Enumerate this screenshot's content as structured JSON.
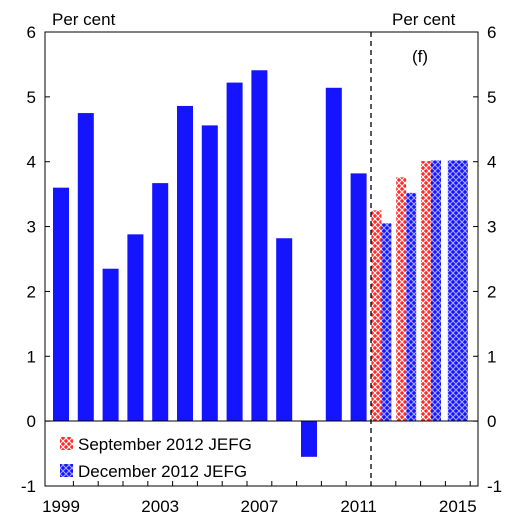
{
  "chart_data": {
    "type": "bar",
    "ylim": [
      -1,
      6
    ],
    "yticks": [
      -1,
      0,
      1,
      2,
      3,
      4,
      5,
      6
    ],
    "ytick_labels": [
      "-1",
      "0",
      "1",
      "2",
      "3",
      "4",
      "5",
      "6"
    ],
    "xtick_labels": [
      "1999",
      "2003",
      "2007",
      "2011",
      "2015"
    ],
    "xtick_years": [
      1999,
      2003,
      2007,
      2011,
      2015
    ],
    "unit_left": "Per cent",
    "unit_right": "Per cent",
    "forecast_label": "(f)",
    "forecast_after_year": 2011,
    "grid": false,
    "legend_position": "bottom-left",
    "history": {
      "years": [
        1999,
        2000,
        2001,
        2002,
        2003,
        2004,
        2005,
        2006,
        2007,
        2008,
        2009,
        2010,
        2011
      ],
      "values": [
        3.6,
        4.75,
        2.35,
        2.88,
        3.67,
        4.86,
        4.56,
        5.22,
        5.41,
        2.82,
        -0.55,
        5.14,
        3.82
      ]
    },
    "series": [
      {
        "name": "September 2012 JEFG",
        "years": [
          2012,
          2013,
          2014
        ],
        "values": [
          3.25,
          3.76,
          4.01
        ],
        "color": "#ff2020"
      },
      {
        "name": "December 2012 JEFG",
        "years": [
          2012,
          2013,
          2014,
          2015
        ],
        "values": [
          3.05,
          3.52,
          4.02,
          4.02
        ],
        "color": "#1414ff"
      }
    ],
    "history_color": "#1414ff"
  }
}
